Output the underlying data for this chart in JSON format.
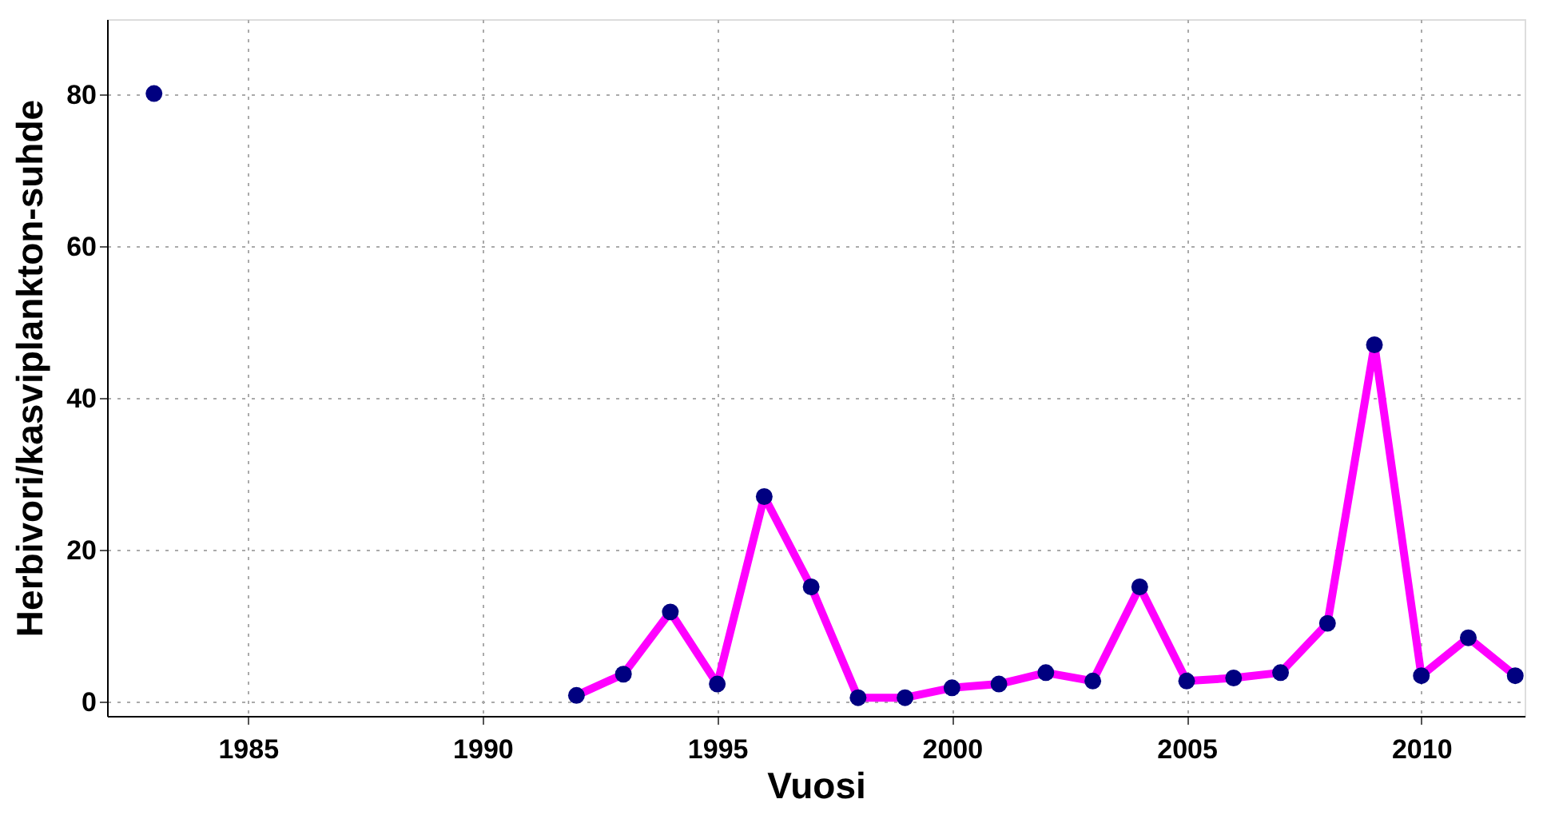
{
  "chart_data": {
    "type": "line",
    "xlabel": "Vuosi",
    "ylabel": "Herbivori/kasviplankton-suhde",
    "x": [
      1983,
      1984,
      1992,
      1993,
      1994,
      1995,
      1996,
      1997,
      1998,
      1999,
      2000,
      2001,
      2002,
      2003,
      2004,
      2005,
      2006,
      2007,
      2008,
      2009,
      2010,
      2011,
      2012
    ],
    "series": [
      {
        "color": "#ff00ff",
        "marker": "none",
        "values": [
          null,
          null,
          0.9,
          3.7,
          11.9,
          2.4,
          27.1,
          15.2,
          0.6,
          0.6,
          1.9,
          2.4,
          3.9,
          2.8,
          15.2,
          2.8,
          3.2,
          3.9,
          10.4,
          47.1,
          3.5,
          8.5,
          3.5
        ]
      },
      {
        "type": "scatter",
        "color": "#000080",
        "marker": "circle",
        "values": [
          80.2,
          null,
          0.9,
          3.7,
          11.9,
          2.4,
          27.1,
          15.2,
          0.6,
          0.6,
          1.9,
          2.4,
          3.9,
          2.8,
          15.2,
          2.8,
          3.2,
          3.9,
          10.4,
          47.1,
          3.5,
          8.5,
          3.5
        ]
      }
    ],
    "xlim": [
      1982,
      2012.2
    ],
    "xticks": [
      1985,
      1990,
      1995,
      2000,
      2005,
      2010
    ],
    "ylim": [
      -1.8,
      90
    ],
    "yticks": [
      0,
      20,
      40,
      60,
      80
    ],
    "grid": true,
    "line_style": "solid"
  }
}
